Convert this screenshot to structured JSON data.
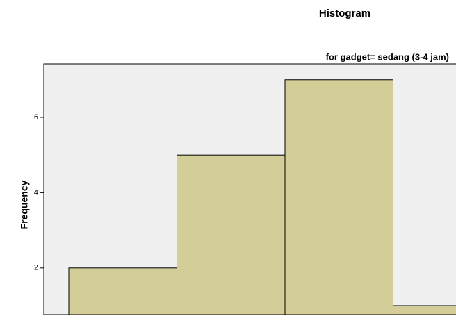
{
  "chart_data": {
    "type": "bar",
    "title": "Histogram",
    "subtitle": "for gadget= sedang (3-4 jam)",
    "ylabel": "Frequency",
    "categories": [
      null,
      null,
      null,
      null
    ],
    "values": [
      2,
      5,
      7,
      1
    ],
    "color": "#d3ce97",
    "ylim": [
      0.76,
      7.42
    ],
    "yticks": [
      2,
      4,
      6
    ]
  }
}
